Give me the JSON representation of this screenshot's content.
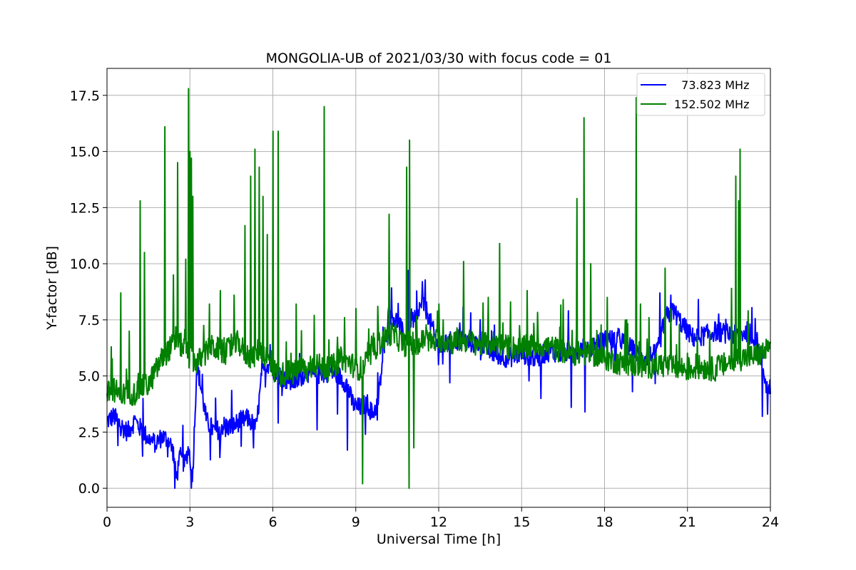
{
  "chart_data": {
    "type": "line",
    "title": "MONGOLIA-UB of 2021/03/30 with focus code = 01",
    "xlabel": "Universal Time [h]",
    "ylabel": "Y-factor [dB]",
    "xlim": [
      0,
      24
    ],
    "ylim": [
      -0.85,
      18.7
    ],
    "xticks": [
      0,
      3,
      6,
      9,
      12,
      15,
      18,
      21,
      24
    ],
    "xtick_labels": [
      "0",
      "3",
      "6",
      "9",
      "12",
      "15",
      "18",
      "21",
      "24"
    ],
    "yticks": [
      0.0,
      2.5,
      5.0,
      7.5,
      10.0,
      12.5,
      15.0,
      17.5
    ],
    "ytick_labels": [
      "0.0",
      "2.5",
      "5.0",
      "7.5",
      "10.0",
      "12.5",
      "15.0",
      "17.5"
    ],
    "grid": true,
    "legend_position": "top-right",
    "series": [
      {
        "name": "  73.823 MHz",
        "color": "#0000ff",
        "x": [
          0,
          0.25,
          0.5,
          0.75,
          1.0,
          1.25,
          1.5,
          1.75,
          2.0,
          2.25,
          2.4,
          2.5,
          2.65,
          2.8,
          2.95,
          3.1,
          3.25,
          3.4,
          3.6,
          3.9,
          4.2,
          4.5,
          4.8,
          5.1,
          5.4,
          5.6,
          5.8,
          6.0,
          6.3,
          6.6,
          6.9,
          7.2,
          7.5,
          7.8,
          8.1,
          8.4,
          8.7,
          8.85,
          9.0,
          9.2,
          9.4,
          9.6,
          9.8,
          10.0,
          10.2,
          10.4,
          10.6,
          10.8,
          11.0,
          11.2,
          11.4,
          11.6,
          11.8,
          12.0,
          12.5,
          13.0,
          13.5,
          14.0,
          14.5,
          15.0,
          15.5,
          16.0,
          16.5,
          17.0,
          17.5,
          18.0,
          18.5,
          19.0,
          19.3,
          19.6,
          19.9,
          20.2,
          20.5,
          20.8,
          21.2,
          21.6,
          22.0,
          22.4,
          22.8,
          23.2,
          23.5,
          23.7,
          23.85,
          24.0
        ],
        "y": [
          3.0,
          3.2,
          2.8,
          2.5,
          3.0,
          2.6,
          2.2,
          2.0,
          2.3,
          2.1,
          1.6,
          0.4,
          1.4,
          1.0,
          1.8,
          0.6,
          5.5,
          4.5,
          3.0,
          2.5,
          2.8,
          2.7,
          3.0,
          3.1,
          2.7,
          5.0,
          5.6,
          5.3,
          5.0,
          4.7,
          4.8,
          5.2,
          5.0,
          5.1,
          5.2,
          5.0,
          4.6,
          3.9,
          3.6,
          3.6,
          3.8,
          3.3,
          3.8,
          6.0,
          7.8,
          7.6,
          7.2,
          6.6,
          7.6,
          7.4,
          8.3,
          7.8,
          7.0,
          6.2,
          6.6,
          6.5,
          6.4,
          6.0,
          5.8,
          6.0,
          5.8,
          6.1,
          6.0,
          6.2,
          6.3,
          6.6,
          6.7,
          6.2,
          5.8,
          5.9,
          6.0,
          7.6,
          7.9,
          7.3,
          6.7,
          6.8,
          7.0,
          6.9,
          6.8,
          7.0,
          6.6,
          5.6,
          4.6,
          4.5
        ],
        "spikes": [
          [
            0.4,
            1.9
          ],
          [
            1.3,
            4.0
          ],
          [
            2.2,
            1.4
          ],
          [
            2.45,
            0.0
          ],
          [
            2.75,
            2.8
          ],
          [
            3.05,
            0.0
          ],
          [
            4.1,
            1.9
          ],
          [
            5.3,
            1.8
          ],
          [
            5.9,
            6.4
          ],
          [
            6.2,
            2.9
          ],
          [
            7.6,
            2.6
          ],
          [
            8.7,
            1.7
          ],
          [
            9.35,
            2.4
          ],
          [
            10.9,
            9.7
          ],
          [
            11.4,
            9.2
          ],
          [
            15.7,
            4.0
          ],
          [
            16.8,
            3.6
          ],
          [
            17.3,
            3.4
          ],
          [
            19.0,
            4.3
          ],
          [
            20.0,
            8.7
          ],
          [
            20.4,
            8.6
          ],
          [
            23.7,
            3.2
          ],
          [
            23.9,
            3.3
          ]
        ]
      },
      {
        "name": "152.502 MHz",
        "color": "#008000",
        "x": [
          0,
          0.25,
          0.5,
          0.75,
          1.0,
          1.25,
          1.5,
          1.75,
          2.0,
          2.25,
          2.5,
          2.75,
          3.0,
          3.25,
          3.5,
          3.75,
          4.0,
          4.25,
          4.5,
          4.75,
          5.0,
          5.25,
          5.5,
          5.75,
          6.0,
          6.25,
          6.5,
          6.75,
          7.0,
          7.25,
          7.5,
          7.75,
          8.0,
          8.25,
          8.5,
          8.75,
          9.0,
          9.25,
          9.5,
          9.75,
          10.0,
          10.25,
          10.5,
          10.75,
          11.0,
          11.25,
          11.5,
          11.75,
          12.0,
          12.5,
          13.0,
          13.5,
          14.0,
          14.5,
          15.0,
          15.5,
          16.0,
          16.5,
          17.0,
          17.5,
          18.0,
          18.5,
          19.0,
          19.5,
          20.0,
          20.5,
          21.0,
          21.5,
          22.0,
          22.5,
          23.0,
          23.5,
          24.0
        ],
        "y": [
          4.2,
          4.4,
          4.1,
          4.3,
          4.2,
          4.5,
          4.6,
          5.2,
          5.8,
          6.2,
          6.5,
          6.3,
          5.8,
          5.6,
          5.9,
          6.3,
          6.2,
          6.0,
          6.3,
          6.5,
          6.0,
          5.8,
          6.2,
          5.9,
          5.3,
          5.0,
          5.2,
          5.1,
          5.4,
          5.2,
          5.6,
          5.4,
          5.3,
          5.5,
          5.8,
          5.6,
          5.4,
          5.3,
          5.9,
          6.3,
          6.6,
          6.9,
          6.7,
          6.4,
          6.5,
          6.3,
          6.7,
          6.5,
          6.6,
          6.5,
          6.6,
          6.4,
          6.5,
          6.3,
          6.2,
          6.4,
          6.3,
          6.1,
          6.0,
          6.0,
          5.8,
          5.6,
          5.5,
          5.4,
          5.5,
          5.4,
          5.3,
          5.4,
          5.3,
          5.6,
          5.8,
          5.9,
          6.2
        ],
        "spikes": [
          [
            0.15,
            6.3
          ],
          [
            0.5,
            8.7
          ],
          [
            0.8,
            7.0
          ],
          [
            1.2,
            12.8
          ],
          [
            1.35,
            10.5
          ],
          [
            2.1,
            16.1
          ],
          [
            2.4,
            9.5
          ],
          [
            2.55,
            14.5
          ],
          [
            2.85,
            10.2
          ],
          [
            2.95,
            17.8
          ],
          [
            3.0,
            15.0
          ],
          [
            3.05,
            14.7
          ],
          [
            3.1,
            13.0
          ],
          [
            3.7,
            8.2
          ],
          [
            4.1,
            8.8
          ],
          [
            4.6,
            8.6
          ],
          [
            5.0,
            11.7
          ],
          [
            5.2,
            13.9
          ],
          [
            5.35,
            15.1
          ],
          [
            5.5,
            14.3
          ],
          [
            5.65,
            13.0
          ],
          [
            5.8,
            11.3
          ],
          [
            6.0,
            15.9
          ],
          [
            6.2,
            15.9
          ],
          [
            6.85,
            8.2
          ],
          [
            7.5,
            7.7
          ],
          [
            7.85,
            17.0
          ],
          [
            8.6,
            7.6
          ],
          [
            9.0,
            8.0
          ],
          [
            9.25,
            0.2
          ],
          [
            9.8,
            8.1
          ],
          [
            10.2,
            12.2
          ],
          [
            10.85,
            14.3
          ],
          [
            10.92,
            0.0
          ],
          [
            10.95,
            15.5
          ],
          [
            11.1,
            1.8
          ],
          [
            12.0,
            8.2
          ],
          [
            12.9,
            10.1
          ],
          [
            13.8,
            8.5
          ],
          [
            14.2,
            10.9
          ],
          [
            14.6,
            8.3
          ],
          [
            15.2,
            8.8
          ],
          [
            16.5,
            8.4
          ],
          [
            17.0,
            12.9
          ],
          [
            17.25,
            16.5
          ],
          [
            17.5,
            10.0
          ],
          [
            18.1,
            8.5
          ],
          [
            18.8,
            7.5
          ],
          [
            19.15,
            17.4
          ],
          [
            19.3,
            8.2
          ],
          [
            19.6,
            7.6
          ],
          [
            20.2,
            9.8
          ],
          [
            20.4,
            8.0
          ],
          [
            20.7,
            7.3
          ],
          [
            21.8,
            7.0
          ],
          [
            22.6,
            8.9
          ],
          [
            22.75,
            13.9
          ],
          [
            22.85,
            12.8
          ],
          [
            22.9,
            15.1
          ],
          [
            23.2,
            7.9
          ]
        ]
      }
    ]
  }
}
